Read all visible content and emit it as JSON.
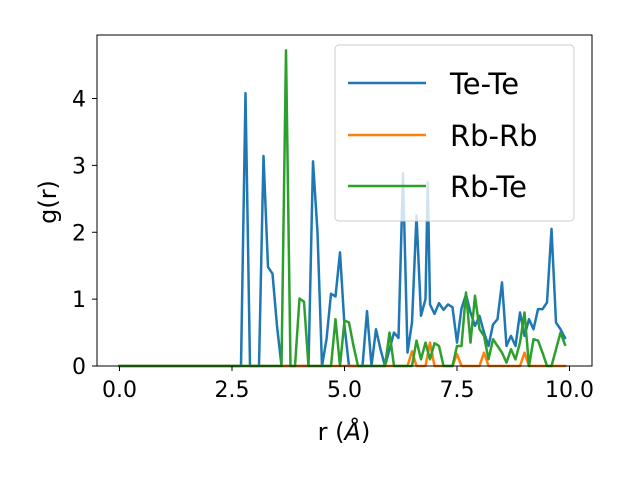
{
  "chart_data": {
    "type": "line",
    "xlabel": "r (",
    "xlabel_symbol": "Å",
    "xlabel_close": ")",
    "ylabel": "g(r)",
    "xlim": [
      -0.5,
      10.5
    ],
    "ylim": [
      0,
      4.95
    ],
    "xticks": [
      0.0,
      2.5,
      5.0,
      7.5,
      10.0
    ],
    "xtick_labels": [
      "0.0",
      "2.5",
      "5.0",
      "7.5",
      "10.0"
    ],
    "yticks": [
      0,
      1,
      2,
      3,
      4
    ],
    "ytick_labels": [
      "0",
      "1",
      "2",
      "3",
      "4"
    ],
    "grid": false,
    "legend_position": "top-right",
    "series": [
      {
        "name": "Te-Te",
        "color": "#1f77b4",
        "points": [
          [
            0,
            0
          ],
          [
            2.7,
            0
          ],
          [
            2.8,
            4.08
          ],
          [
            2.9,
            0
          ],
          [
            3.1,
            0
          ],
          [
            3.2,
            3.14
          ],
          [
            3.3,
            1.48
          ],
          [
            3.4,
            1.38
          ],
          [
            3.5,
            0.6
          ],
          [
            3.6,
            0
          ],
          [
            4.2,
            0
          ],
          [
            4.3,
            3.06
          ],
          [
            4.4,
            2.0
          ],
          [
            4.5,
            0
          ],
          [
            4.6,
            0.4
          ],
          [
            4.7,
            1.08
          ],
          [
            4.8,
            1.04
          ],
          [
            4.9,
            1.7
          ],
          [
            5.0,
            0.6
          ],
          [
            5.1,
            0
          ],
          [
            5.4,
            0
          ],
          [
            5.5,
            0.82
          ],
          [
            5.6,
            0
          ],
          [
            5.7,
            0.55
          ],
          [
            5.8,
            0.25
          ],
          [
            5.9,
            0
          ],
          [
            6.1,
            0.5
          ],
          [
            6.2,
            0.42
          ],
          [
            6.3,
            2.88
          ],
          [
            6.4,
            0.2
          ],
          [
            6.5,
            0.65
          ],
          [
            6.6,
            2.25
          ],
          [
            6.7,
            0.75
          ],
          [
            6.8,
            1.0
          ],
          [
            6.85,
            2.75
          ],
          [
            6.9,
            0.92
          ],
          [
            7.0,
            0.78
          ],
          [
            7.1,
            0.94
          ],
          [
            7.2,
            0.84
          ],
          [
            7.3,
            0.92
          ],
          [
            7.4,
            0.88
          ],
          [
            7.5,
            0.35
          ],
          [
            7.6,
            0.86
          ],
          [
            7.7,
            1.07
          ],
          [
            7.8,
            0.8
          ],
          [
            7.9,
            0.6
          ],
          [
            8.0,
            0.75
          ],
          [
            8.1,
            0.5
          ],
          [
            8.2,
            0.3
          ],
          [
            8.3,
            0.62
          ],
          [
            8.4,
            0.7
          ],
          [
            8.5,
            1.25
          ],
          [
            8.6,
            0.3
          ],
          [
            8.7,
            0.45
          ],
          [
            8.8,
            0.3
          ],
          [
            8.9,
            0.8
          ],
          [
            9.0,
            0.45
          ],
          [
            9.1,
            0.7
          ],
          [
            9.2,
            0.55
          ],
          [
            9.3,
            0.85
          ],
          [
            9.4,
            0.85
          ],
          [
            9.5,
            0.95
          ],
          [
            9.6,
            2.05
          ],
          [
            9.7,
            0.65
          ],
          [
            9.8,
            0.55
          ],
          [
            9.9,
            0.42
          ]
        ]
      },
      {
        "name": "Rb-Rb",
        "color": "#ff7f0e",
        "points": [
          [
            0,
            0
          ],
          [
            6.4,
            0
          ],
          [
            6.5,
            0.22
          ],
          [
            6.6,
            0
          ],
          [
            6.8,
            0
          ],
          [
            6.9,
            0.35
          ],
          [
            7.0,
            0
          ],
          [
            7.4,
            0
          ],
          [
            7.5,
            0.18
          ],
          [
            7.6,
            0
          ],
          [
            8.0,
            0
          ],
          [
            8.1,
            0.2
          ],
          [
            8.2,
            0
          ],
          [
            8.9,
            0
          ],
          [
            9.0,
            0.2
          ],
          [
            9.1,
            0
          ],
          [
            9.9,
            0
          ]
        ]
      },
      {
        "name": "Rb-Te",
        "color": "#2ca02c",
        "points": [
          [
            0,
            0
          ],
          [
            3.6,
            0
          ],
          [
            3.7,
            4.72
          ],
          [
            3.8,
            0
          ],
          [
            3.9,
            0
          ],
          [
            4.0,
            1.01
          ],
          [
            4.1,
            0.96
          ],
          [
            4.2,
            0
          ],
          [
            4.7,
            0
          ],
          [
            4.8,
            0.7
          ],
          [
            4.9,
            0
          ],
          [
            5.0,
            0.68
          ],
          [
            5.1,
            0.65
          ],
          [
            5.2,
            0.3
          ],
          [
            5.3,
            0
          ],
          [
            5.9,
            0
          ],
          [
            6.0,
            0.5
          ],
          [
            6.1,
            0
          ],
          [
            6.5,
            0
          ],
          [
            6.6,
            0.38
          ],
          [
            6.7,
            0.1
          ],
          [
            6.8,
            0.35
          ],
          [
            6.9,
            0.1
          ],
          [
            7.0,
            0.34
          ],
          [
            7.1,
            0.3
          ],
          [
            7.2,
            0
          ],
          [
            7.4,
            0
          ],
          [
            7.5,
            0.3
          ],
          [
            7.6,
            0.3
          ],
          [
            7.7,
            1.1
          ],
          [
            7.8,
            0.35
          ],
          [
            7.9,
            1.05
          ],
          [
            8.0,
            0.55
          ],
          [
            8.1,
            0.45
          ],
          [
            8.2,
            0.1
          ],
          [
            8.3,
            0.4
          ],
          [
            8.4,
            0.3
          ],
          [
            8.5,
            0.2
          ],
          [
            8.6,
            0.05
          ],
          [
            8.7,
            0.25
          ],
          [
            8.8,
            0.1
          ],
          [
            8.9,
            0.35
          ],
          [
            9.0,
            0.8
          ],
          [
            9.1,
            0
          ],
          [
            9.2,
            0.4
          ],
          [
            9.3,
            0.38
          ],
          [
            9.4,
            0.2
          ],
          [
            9.5,
            0
          ],
          [
            9.6,
            0
          ],
          [
            9.7,
            0.25
          ],
          [
            9.8,
            0.5
          ],
          [
            9.9,
            0.32
          ]
        ]
      }
    ]
  }
}
